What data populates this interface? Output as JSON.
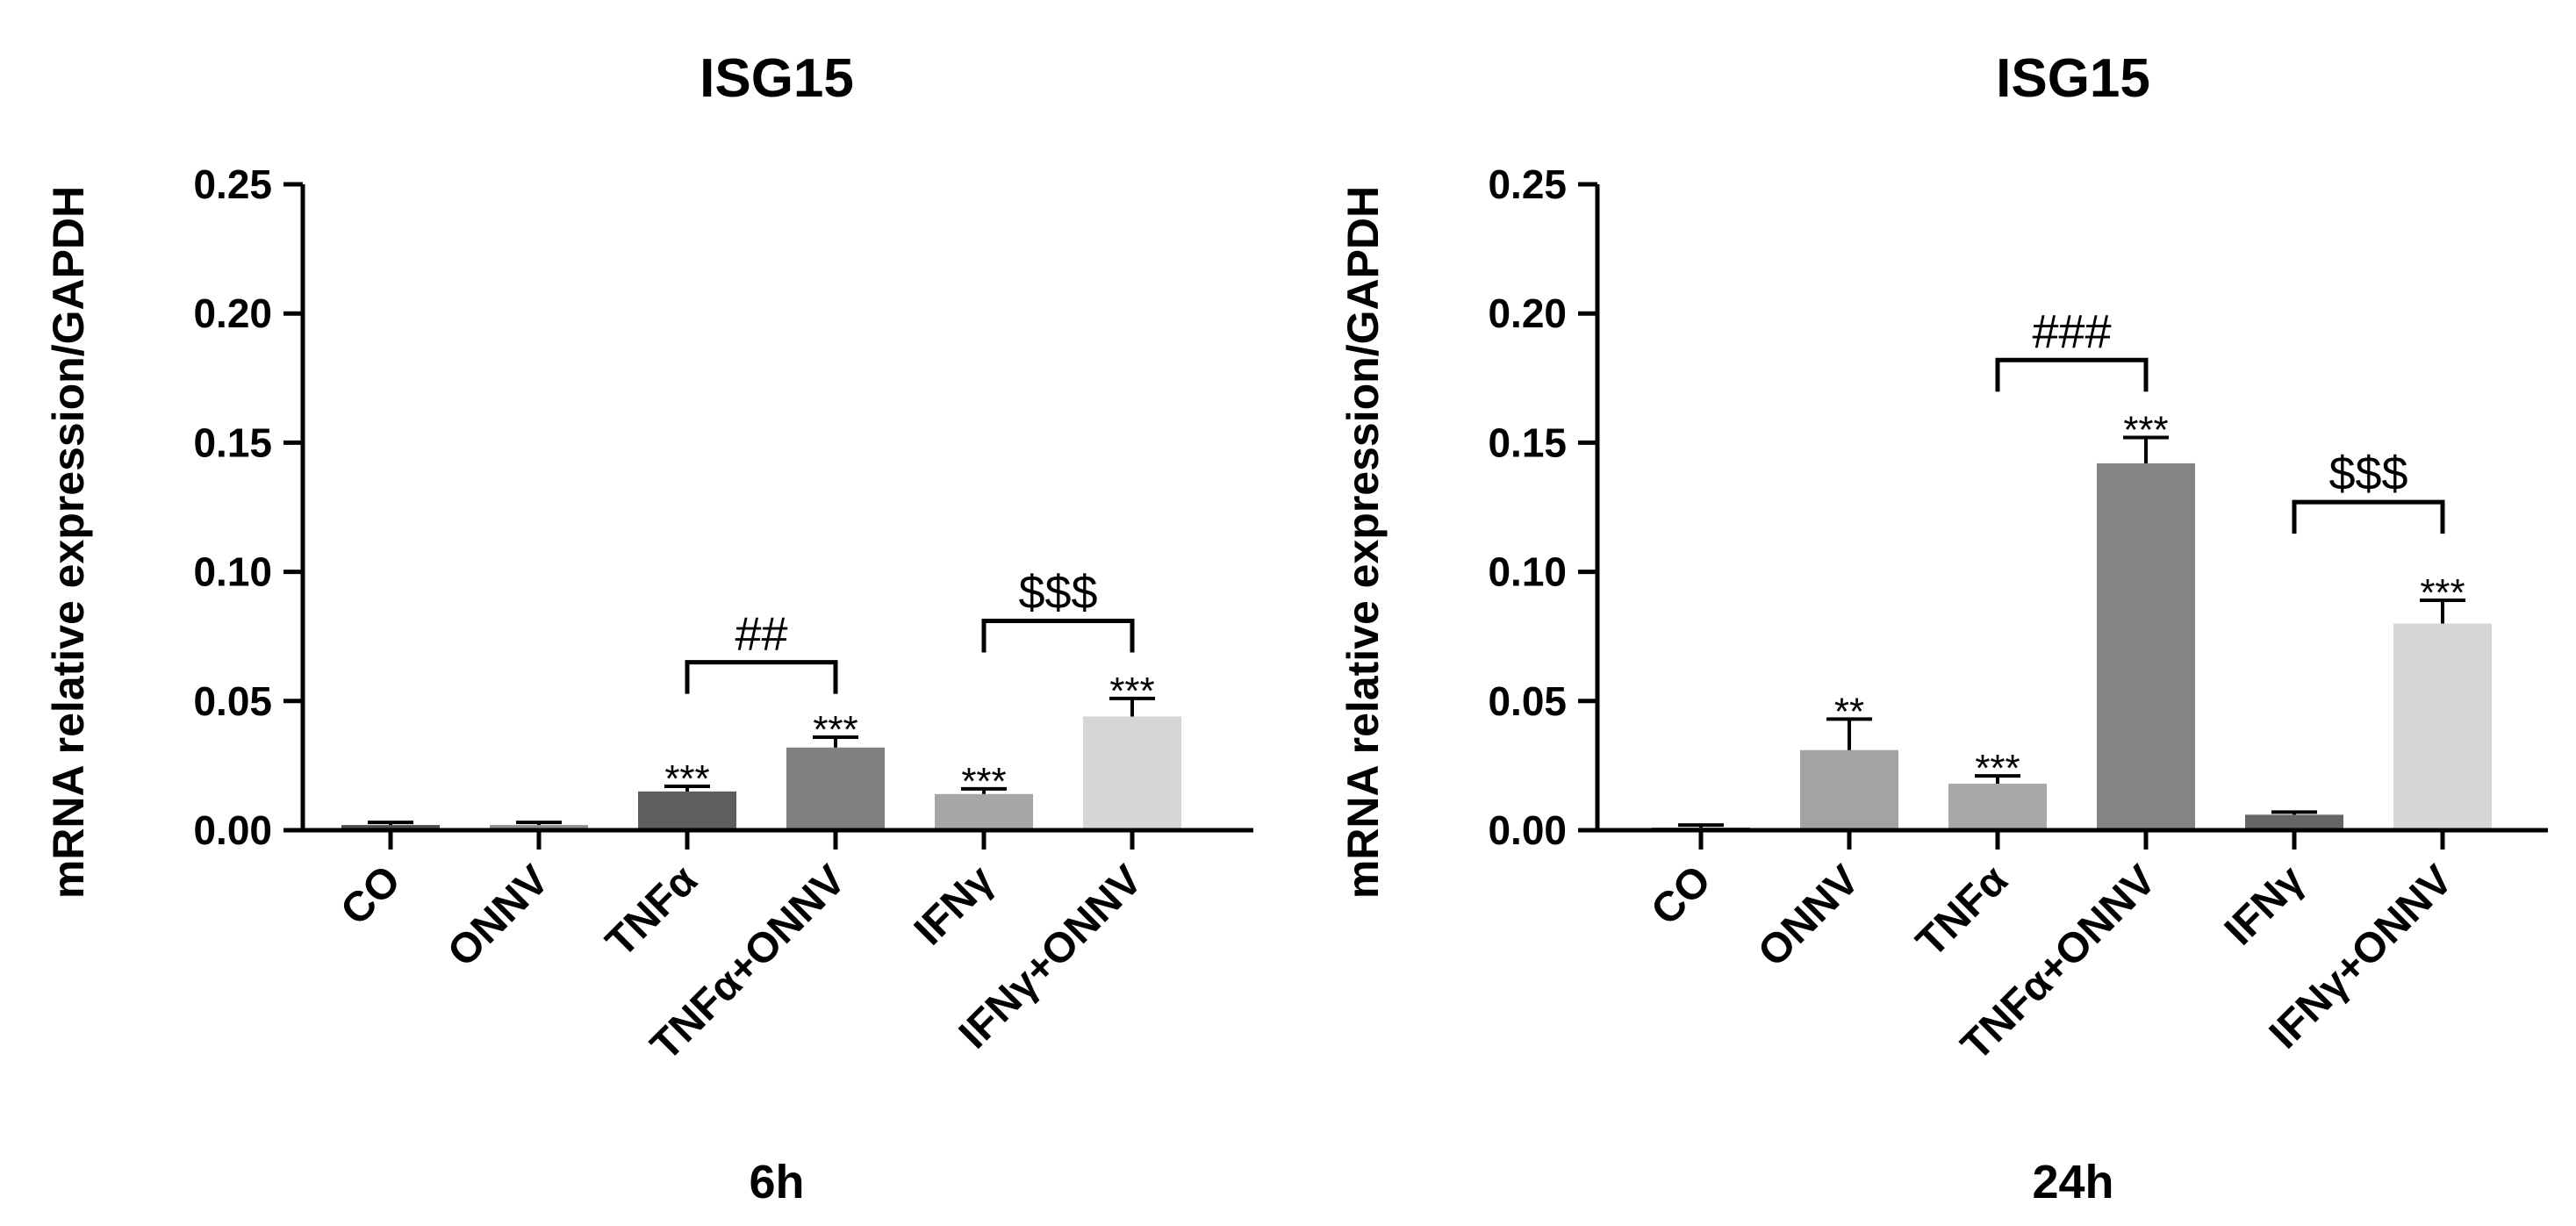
{
  "chart_data": [
    {
      "type": "bar",
      "title": "ISG15",
      "xlabel": "6h",
      "ylabel": "mRNA relative expression/GAPDH",
      "ylim": [
        0,
        0.25
      ],
      "yticks": [
        "0.00",
        "0.05",
        "0.10",
        "0.15",
        "0.20",
        "0.25"
      ],
      "categories": [
        "CO",
        "ONNV",
        "TNFα",
        "TNFα+ONNV",
        "IFNγ",
        "IFNγ+ONNV"
      ],
      "values": [
        0.002,
        0.002,
        0.015,
        0.032,
        0.014,
        0.044
      ],
      "errors": [
        0.001,
        0.001,
        0.002,
        0.004,
        0.002,
        0.007
      ],
      "colors": [
        "#4d4d4d",
        "#8f8f8f",
        "#5e5e5e",
        "#7f7f7f",
        "#a6a6a6",
        "#d6d6d6"
      ],
      "significance": [
        "",
        "",
        "***",
        "***",
        "***",
        "***"
      ],
      "brackets": [
        {
          "from": 2,
          "to": 3,
          "label": "##",
          "level": 0.065
        },
        {
          "from": 4,
          "to": 5,
          "label": "$$$",
          "level": 0.081
        }
      ]
    },
    {
      "type": "bar",
      "title": "ISG15",
      "xlabel": "24h",
      "ylabel": "mRNA relative expression/GAPDH",
      "ylim": [
        0,
        0.25
      ],
      "yticks": [
        "0.00",
        "0.05",
        "0.10",
        "0.15",
        "0.20",
        "0.25"
      ],
      "categories": [
        "CO",
        "ONNV",
        "TNFα",
        "TNFα+ONNV",
        "IFNγ",
        "IFNγ+ONNV"
      ],
      "values": [
        0.001,
        0.031,
        0.018,
        0.142,
        0.006,
        0.08
      ],
      "errors": [
        0.001,
        0.012,
        0.003,
        0.01,
        0.001,
        0.009
      ],
      "colors": [
        "#4d4d4d",
        "#a3a3a3",
        "#a8a8a8",
        "#848484",
        "#666666",
        "#d6d6d6"
      ],
      "significance": [
        "",
        "**",
        "***",
        "***",
        "",
        "***"
      ],
      "brackets": [
        {
          "from": 2,
          "to": 3,
          "label": "###",
          "level": 0.182
        },
        {
          "from": 4,
          "to": 5,
          "label": "$$$",
          "level": 0.127
        }
      ]
    }
  ]
}
